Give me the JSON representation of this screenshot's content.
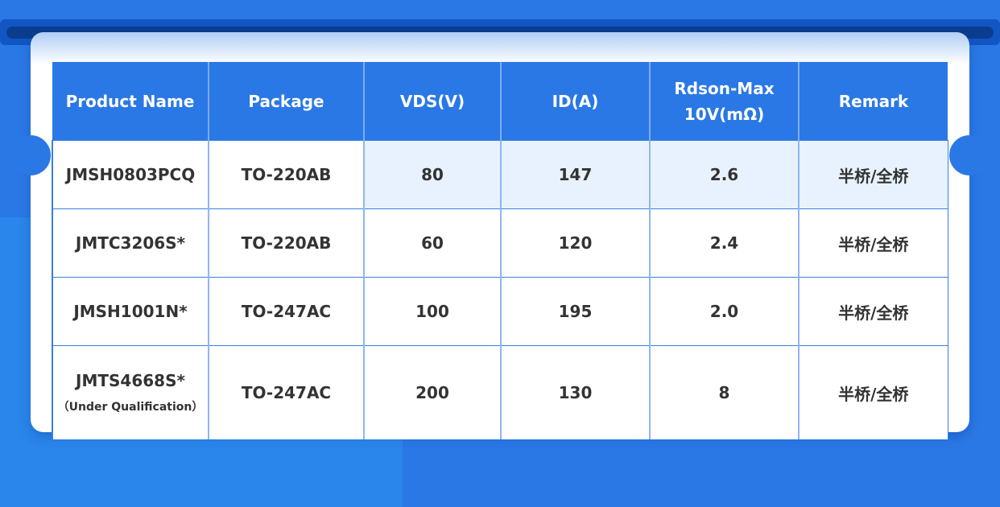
{
  "table": {
    "headers": [
      "Product Name",
      "Package",
      "VDS(V)",
      "ID(A)",
      "Rdson-Max\n10V(mΩ)",
      "Remark"
    ],
    "header_rdson_line1": "Rdson-Max",
    "header_rdson_line2": "10V(mΩ)",
    "rows": [
      {
        "name": "JMSH0803PCQ",
        "note": "",
        "package": "TO-220AB",
        "vds": "80",
        "id": "147",
        "rdson": "2.6",
        "remark": "半桥/全桥"
      },
      {
        "name": "JMTC3206S*",
        "note": "",
        "package": "TO-220AB",
        "vds": "60",
        "id": "120",
        "rdson": "2.4",
        "remark": "半桥/全桥"
      },
      {
        "name": "JMSH1001N*",
        "note": "",
        "package": "TO-247AC",
        "vds": "100",
        "id": "195",
        "rdson": "2.0",
        "remark": "半桥/全桥"
      },
      {
        "name": "JMTS4668S*",
        "note": "（Under Qualification）",
        "package": "TO-247AC",
        "vds": "200",
        "id": "130",
        "rdson": "8",
        "remark": "半桥/全桥"
      }
    ]
  },
  "colors": {
    "primary": "#2a78e6",
    "highlight_row": "#e8f2fe",
    "text": "#333333"
  }
}
